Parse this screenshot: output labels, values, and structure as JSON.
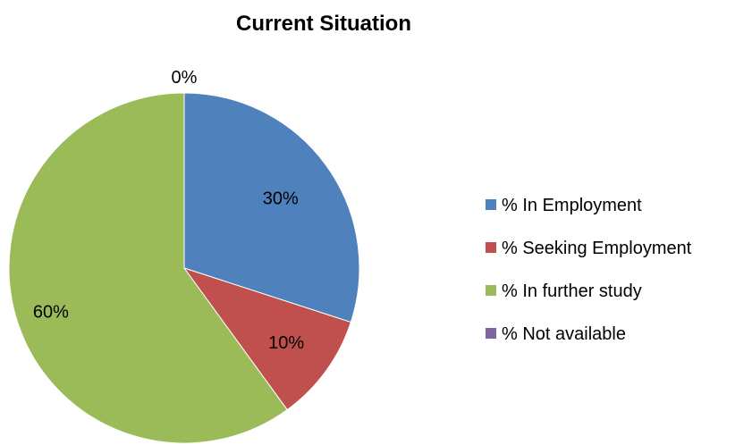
{
  "chart_data": {
    "type": "pie",
    "title": "Current Situation",
    "categories": [
      "% In Employment",
      "% Seeking Employment",
      "% In further study",
      "% Not available"
    ],
    "values": [
      30,
      10,
      60,
      0
    ],
    "data_labels": [
      "30%",
      "10%",
      "60%",
      "0%"
    ],
    "colors": [
      "#4F81BD",
      "#C0504D",
      "#9BBB59",
      "#8064A2"
    ],
    "legend_position": "right"
  }
}
